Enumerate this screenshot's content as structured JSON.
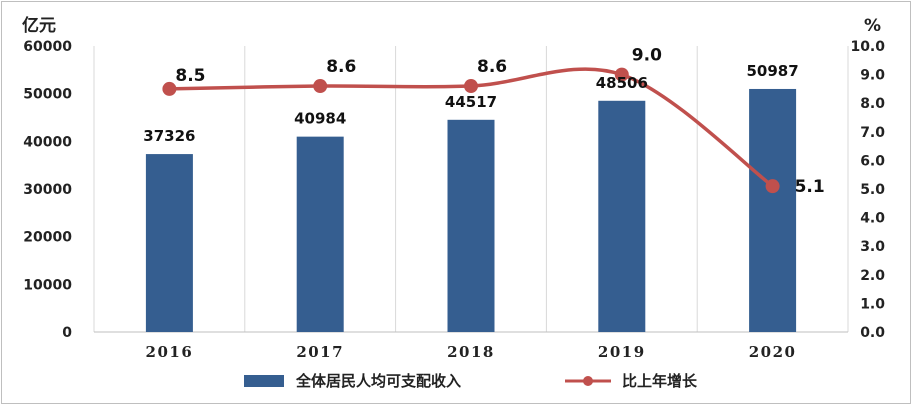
{
  "chart_data": {
    "type": "bar",
    "categories": [
      "2016",
      "2017",
      "2018",
      "2019",
      "2020"
    ],
    "series": [
      {
        "name": "全体居民人均可支配收入",
        "type": "bar",
        "axis": "left",
        "values": [
          37326,
          40984,
          44517,
          48506,
          50987
        ],
        "color": "#355E90"
      },
      {
        "name": "比上年增长",
        "type": "line",
        "axis": "right",
        "values": [
          8.5,
          8.6,
          8.6,
          9.0,
          5.1
        ],
        "color": "#C0504D"
      }
    ],
    "y_left": {
      "unit": "亿元",
      "ylim": [
        0,
        60000
      ],
      "ticks": [
        "0",
        "10000",
        "20000",
        "30000",
        "40000",
        "50000",
        "60000"
      ]
    },
    "y_right": {
      "unit": "%",
      "ylim": [
        0,
        10
      ],
      "ticks": [
        "0.0",
        "1.0",
        "2.0",
        "3.0",
        "4.0",
        "5.0",
        "6.0",
        "7.0",
        "8.0",
        "9.0",
        "10.0"
      ]
    },
    "bar_labels": [
      "37326",
      "40984",
      "44517",
      "48506",
      "50987"
    ],
    "line_labels": [
      "8.5",
      "8.6",
      "8.6",
      "9.0",
      "5.1"
    ],
    "grid": "vertical",
    "legend": "bottom"
  }
}
